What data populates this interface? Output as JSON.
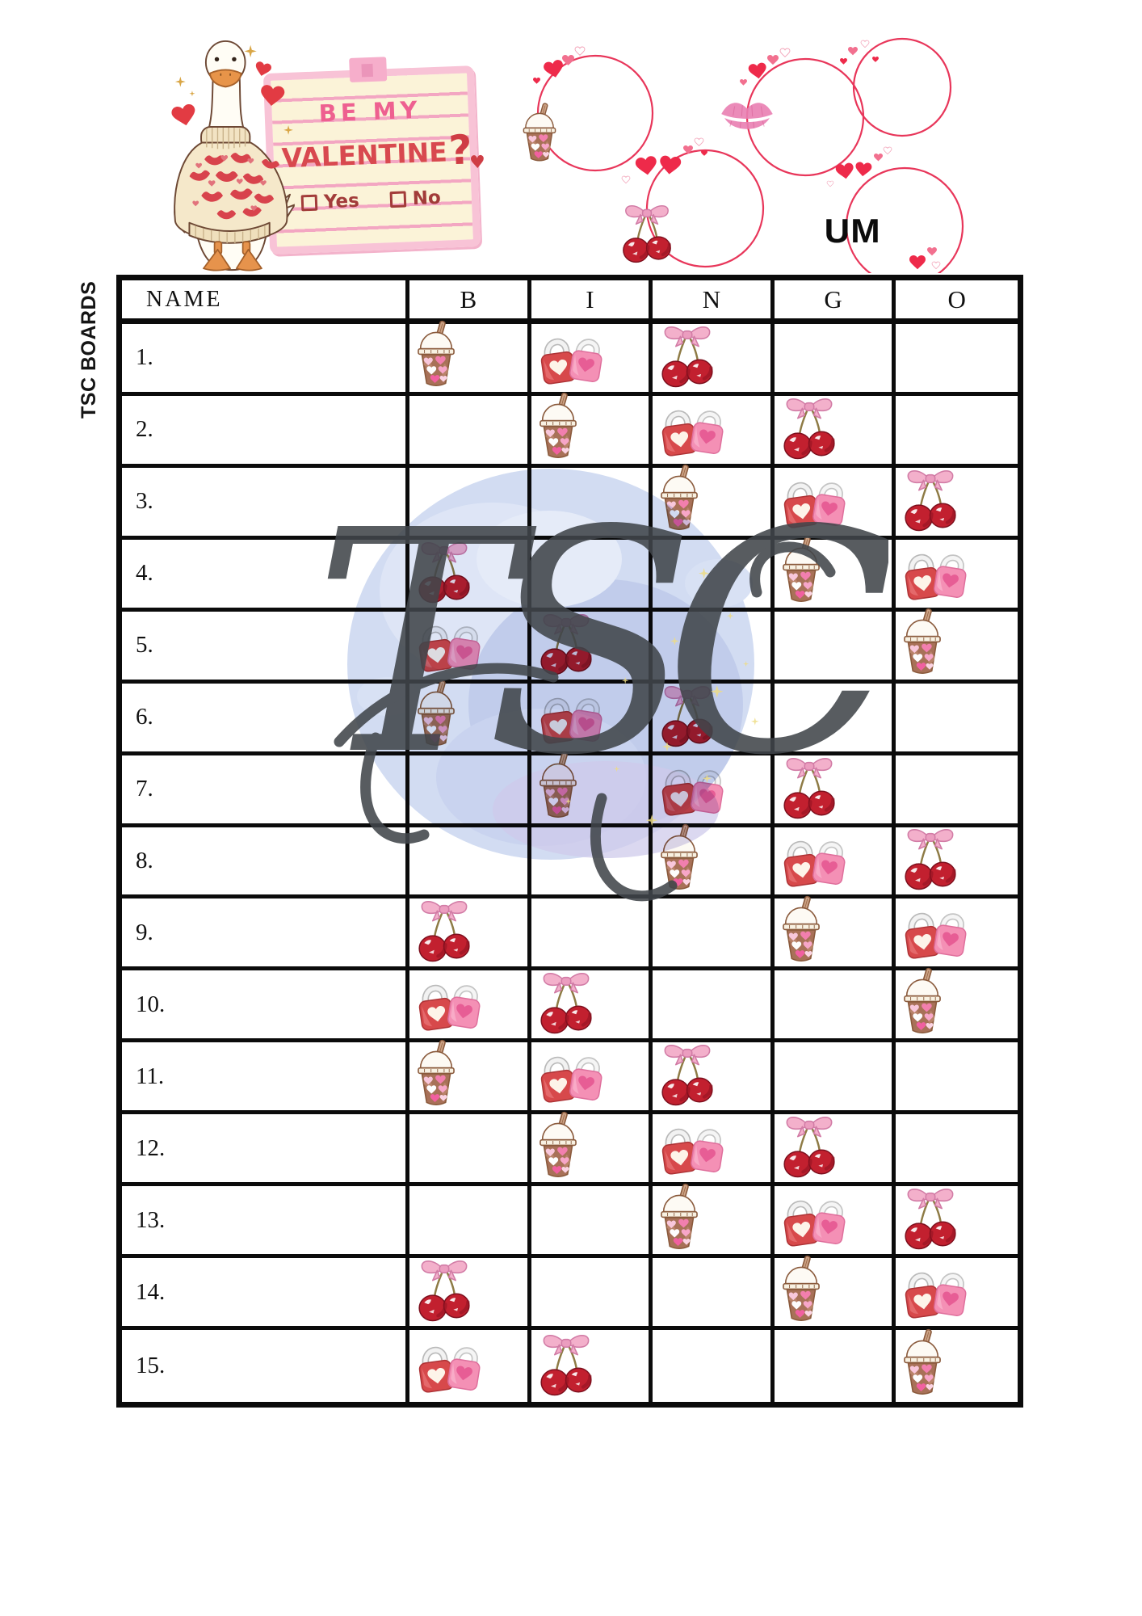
{
  "side_label": "TSC BOARDS",
  "watermark": {
    "text": "TSC"
  },
  "header": {
    "um_label": "UM",
    "note": {
      "line1": "BE MY",
      "line2": "VALENTINE",
      "question_mark": "?",
      "heart_glyph": "♥",
      "yes_label": "Yes",
      "no_label": "No"
    },
    "decorations": [
      "goose-in-lips-sweater",
      "heart-wreath-circles",
      "iced-coffee-drink",
      "cherries-with-bow",
      "lipstick-kiss"
    ]
  },
  "icons": {
    "drink": "iced-coffee-cup-with-hearts",
    "lock": "heart-padlocks-red-and-pink",
    "cherries": "cherries-with-pink-bow"
  },
  "table": {
    "name_header": "NAME",
    "letters": [
      "B",
      "I",
      "N",
      "G",
      "O"
    ],
    "rows": [
      {
        "label": "1.",
        "icons": [
          "drink",
          "lock",
          "cherries",
          "",
          ""
        ]
      },
      {
        "label": "2.",
        "icons": [
          "",
          "drink",
          "lock",
          "cherries",
          ""
        ]
      },
      {
        "label": "3.",
        "icons": [
          "",
          "",
          "drink",
          "lock",
          "cherries"
        ]
      },
      {
        "label": "4.",
        "icons": [
          "cherries",
          "",
          "",
          "drink",
          "lock"
        ]
      },
      {
        "label": "5.",
        "icons": [
          "lock",
          "cherries",
          "",
          "",
          "drink"
        ]
      },
      {
        "label": "6.",
        "icons": [
          "drink",
          "lock",
          "cherries",
          "",
          ""
        ]
      },
      {
        "label": "7.",
        "icons": [
          "",
          "drink",
          "lock",
          "cherries",
          ""
        ]
      },
      {
        "label": "8.",
        "icons": [
          "",
          "",
          "drink",
          "lock",
          "cherries"
        ]
      },
      {
        "label": "9.",
        "icons": [
          "cherries",
          "",
          "",
          "drink",
          "lock"
        ]
      },
      {
        "label": "10.",
        "icons": [
          "lock",
          "cherries",
          "",
          "",
          "drink"
        ]
      },
      {
        "label": "11.",
        "icons": [
          "drink",
          "lock",
          "cherries",
          "",
          ""
        ]
      },
      {
        "label": "12.",
        "icons": [
          "",
          "drink",
          "lock",
          "cherries",
          ""
        ]
      },
      {
        "label": "13.",
        "icons": [
          "",
          "",
          "drink",
          "lock",
          "cherries"
        ]
      },
      {
        "label": "14.",
        "icons": [
          "cherries",
          "",
          "",
          "drink",
          "lock"
        ]
      },
      {
        "label": "15.",
        "icons": [
          "lock",
          "cherries",
          "",
          "",
          "drink"
        ]
      }
    ]
  },
  "colors": {
    "table_border": "#0b0b0b",
    "wreath_red": "#e8365a",
    "heart_red": "#ee2a4a",
    "note_pink_text": "#ee6090",
    "note_red_text": "#d8494f",
    "note_check_text": "#a23c3a",
    "splash_blue": "#c5d2ec",
    "script_gray": "#41464b",
    "sparkle_yellow": "#eedd84"
  }
}
